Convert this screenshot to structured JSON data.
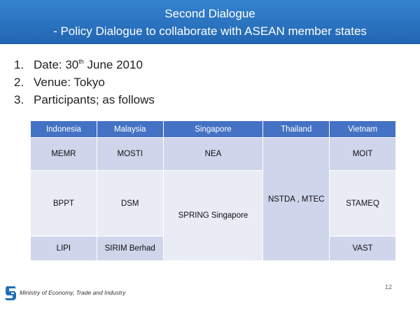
{
  "header": {
    "title_line1": "Second Dialogue",
    "title_line2": " - Policy Dialogue to collaborate with ASEAN member states"
  },
  "points": [
    {
      "num": "1.",
      "text_before": "Date: 30",
      "sup": "th",
      "text_after": " June 2010"
    },
    {
      "num": "2.",
      "text": "Venue: Tokyo"
    },
    {
      "num": "3.",
      "text": "Participants; as follows"
    }
  ],
  "table": {
    "headers": [
      "Indonesia",
      "Malaysia",
      "Singapore",
      "Thailand",
      "Vietnam"
    ],
    "indonesia": [
      "MEMR",
      "BPPT",
      "LIPI"
    ],
    "malaysia": [
      "MOSTI",
      "DSM",
      "SIRIM Berhad"
    ],
    "singapore": [
      "NEA",
      "SPRING Singapore"
    ],
    "thailand": "NSTDA , MTEC",
    "vietnam": [
      "MOIT",
      "STAMEQ",
      "VAST"
    ]
  },
  "footer": {
    "organization": "Ministry of Economy, Trade and Industry",
    "page_number": "12"
  },
  "colors": {
    "title_bar": "#2b78c6",
    "table_header": "#4472c4",
    "row_dark": "#cfd5ea",
    "row_light": "#e9ebf5"
  },
  "icons": {
    "logo": "meti-logo-icon"
  }
}
